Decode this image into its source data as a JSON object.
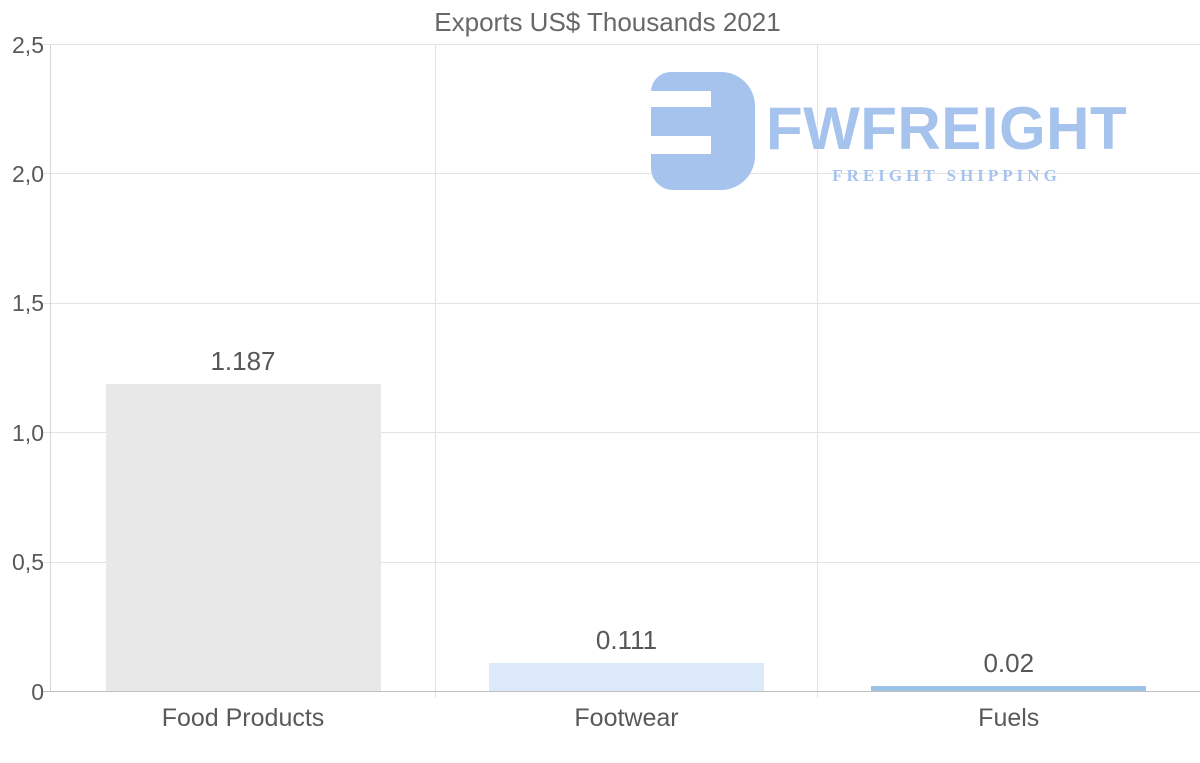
{
  "title": "Exports US$ Thousands 2021",
  "watermark": {
    "brand": "FWFREIGHT",
    "tagline": "FREIGHT SHIPPING",
    "color": "#a6c3ee"
  },
  "chart_data": {
    "type": "bar",
    "title": "Exports US$ Thousands 2021",
    "categories": [
      "Food Products",
      "Footwear",
      "Fuels"
    ],
    "values": [
      1.187,
      0.111,
      0.02
    ],
    "value_labels": [
      "1.187",
      "0.111",
      "0.02"
    ],
    "bar_colors": [
      "#e8e8e8",
      "#dbe9f8",
      "#9cc3e6"
    ],
    "xlabel": "",
    "ylabel": "",
    "ylim": [
      0,
      2.5
    ],
    "ytick_values": [
      0,
      0.5,
      1.0,
      1.5,
      2.0,
      2.5
    ],
    "ytick_labels": [
      "0",
      "0,5",
      "1,0",
      "1,5",
      "2,0",
      "2,5"
    ],
    "grid": true,
    "legend": false,
    "grid_color": "#e3e3e3",
    "axis_color": "#d6d6d6",
    "baseline_color": "#bfbfbf",
    "background": "#ffffff"
  }
}
